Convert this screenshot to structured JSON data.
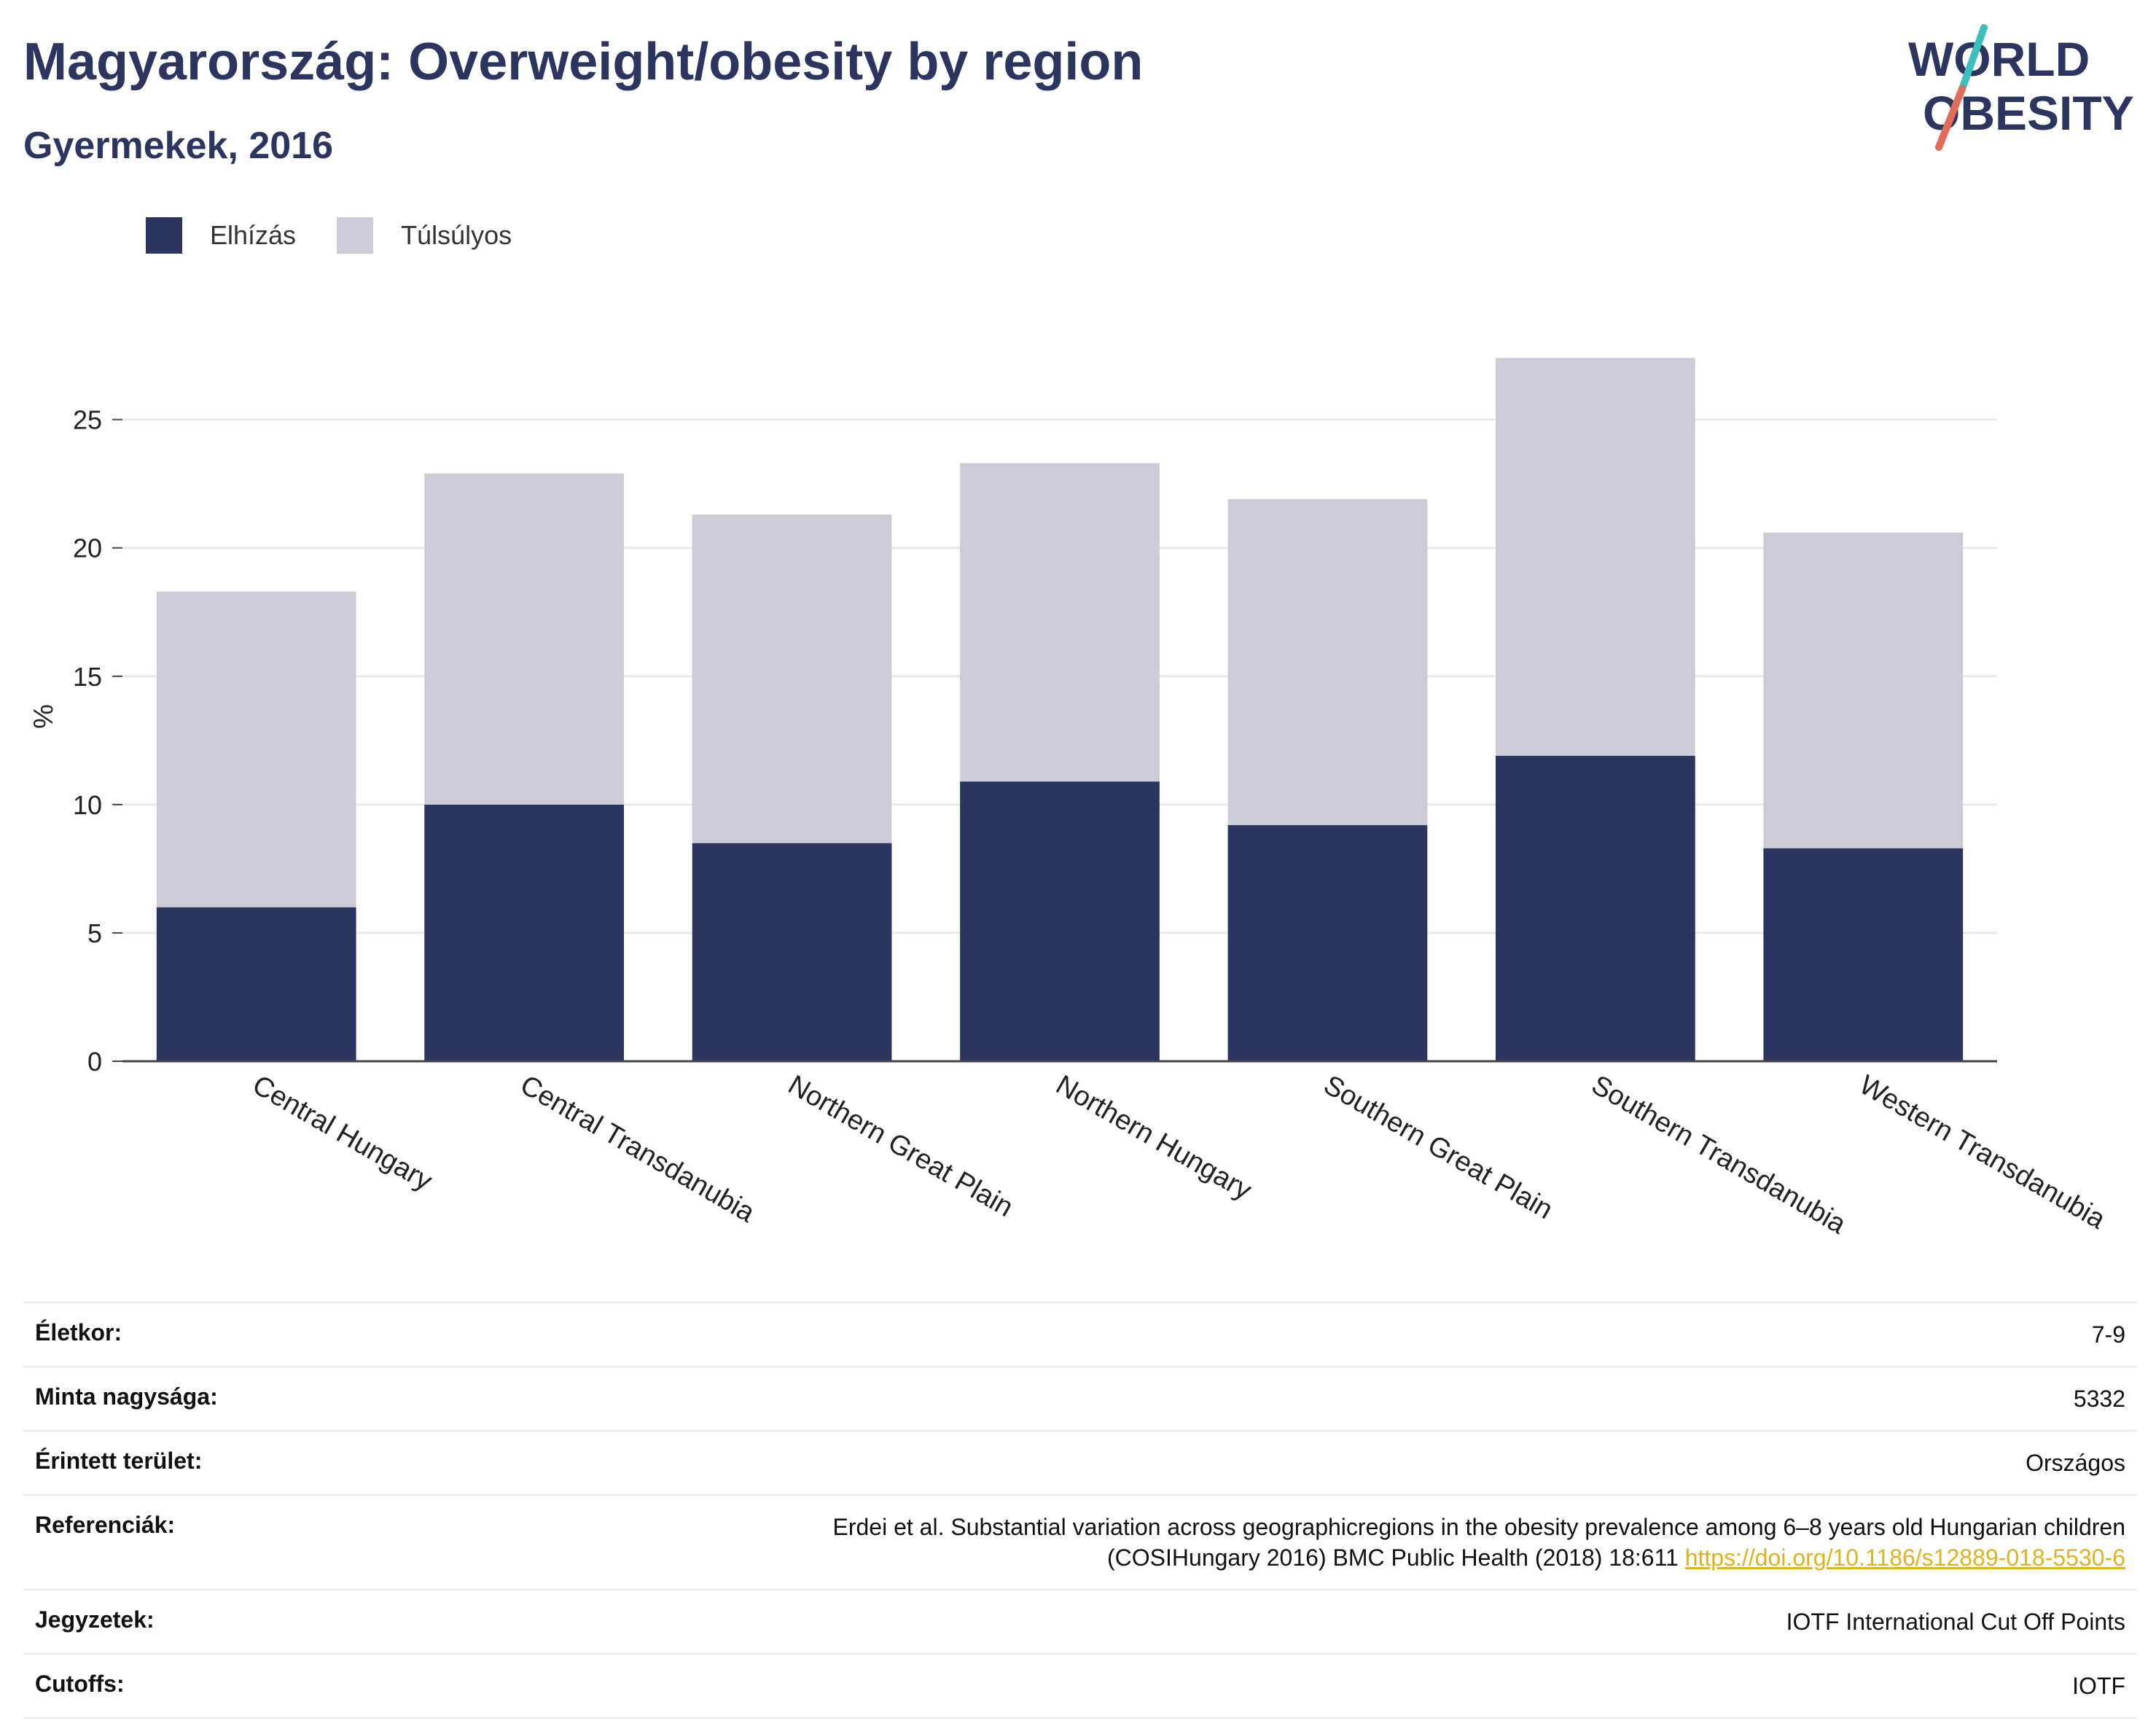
{
  "header": {
    "title": "Magyarország: Overweight/obesity by region",
    "subtitle": "Gyermekek, 2016"
  },
  "logo": {
    "line1": "WORLD",
    "line2": "OBESITY",
    "colors": {
      "text": "#2b3560",
      "slash_top": "#3dbfbf",
      "slash_bottom": "#e06c5a"
    }
  },
  "colors": {
    "obesity": "#2b3560",
    "overweight": "#cbccd8",
    "grid": "#e8eaf0",
    "axis": "#444444"
  },
  "chart_data": {
    "type": "bar",
    "stacked": true,
    "categories": [
      "Central Hungary",
      "Central Transdanubia",
      "Northern Great Plain",
      "Northern Hungary",
      "Southern Great Plain",
      "Southern Transdanubia",
      "Western Transdanubia"
    ],
    "series": [
      {
        "name": "Elhízás",
        "values": [
          6.0,
          10.0,
          8.5,
          10.9,
          9.2,
          11.9,
          8.3
        ]
      },
      {
        "name": "Túlsúlyos",
        "values": [
          12.3,
          12.9,
          12.8,
          12.4,
          12.7,
          15.5,
          12.3
        ]
      }
    ],
    "totals": [
      18.3,
      22.9,
      21.3,
      23.3,
      21.9,
      27.4,
      20.6
    ],
    "ylabel": "%",
    "xlabel": "",
    "ylim": [
      0,
      28
    ],
    "yticks": [
      0,
      5,
      10,
      15,
      20,
      25
    ],
    "grid": true,
    "legend": "top-left"
  },
  "info": [
    {
      "key": "Életkor:",
      "value": "7-9"
    },
    {
      "key": "Minta nagysága:",
      "value": "5332"
    },
    {
      "key": "Érintett terület:",
      "value": "Országos"
    },
    {
      "key": "Referenciák:",
      "value_line1": "Erdei et al. Substantial variation across geographicregions in the obesity prevalence among 6–8 years old Hungarian children",
      "value_line2": "(COSIHungary 2016) BMC Public Health (2018) 18:611",
      "link": "https://doi.org/10.1186/s12889-018-5530-6"
    },
    {
      "key": "Jegyzetek:",
      "value": "IOTF International Cut Off Points"
    },
    {
      "key": "Cutoffs:",
      "value": "IOTF"
    }
  ]
}
